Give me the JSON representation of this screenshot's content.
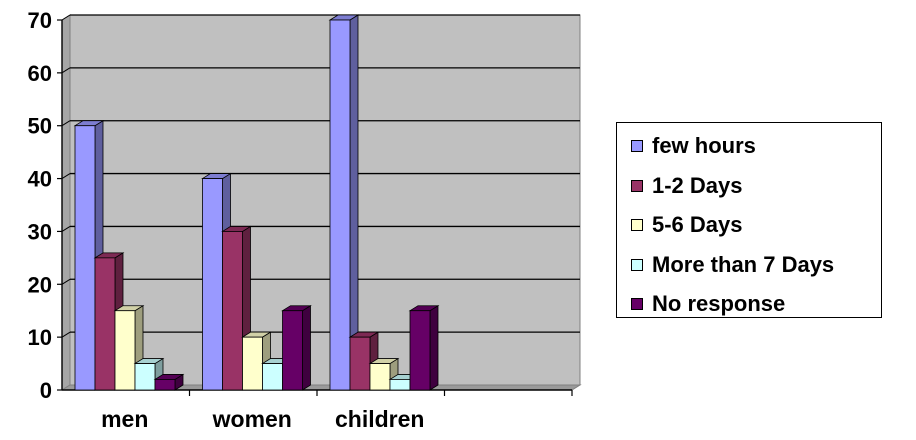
{
  "chart_data": {
    "type": "bar",
    "title": "",
    "xlabel": "",
    "ylabel": "",
    "categories": [
      "men",
      "women",
      "children",
      ""
    ],
    "series": [
      {
        "name": "few hours",
        "values": [
          50,
          40,
          70,
          null
        ],
        "color": "#9999ff"
      },
      {
        "name": "1-2 Days",
        "values": [
          25,
          30,
          10,
          null
        ],
        "color": "#993366"
      },
      {
        "name": "5-6 Days",
        "values": [
          15,
          10,
          5,
          null
        ],
        "color": "#ffffcc"
      },
      {
        "name": "More than 7 Days",
        "values": [
          5,
          5,
          2,
          null
        ],
        "color": "#ccffff"
      },
      {
        "name": "No response",
        "values": [
          2,
          15,
          15,
          null
        ],
        "color": "#660066"
      }
    ],
    "yticks": [
      "0",
      "10",
      "20",
      "30",
      "40",
      "50",
      "60",
      "70"
    ],
    "ylim": [
      0,
      70
    ],
    "grid": true,
    "legend_position": "right",
    "plot_background": "#c0c0c0",
    "style": "3d-bar"
  }
}
